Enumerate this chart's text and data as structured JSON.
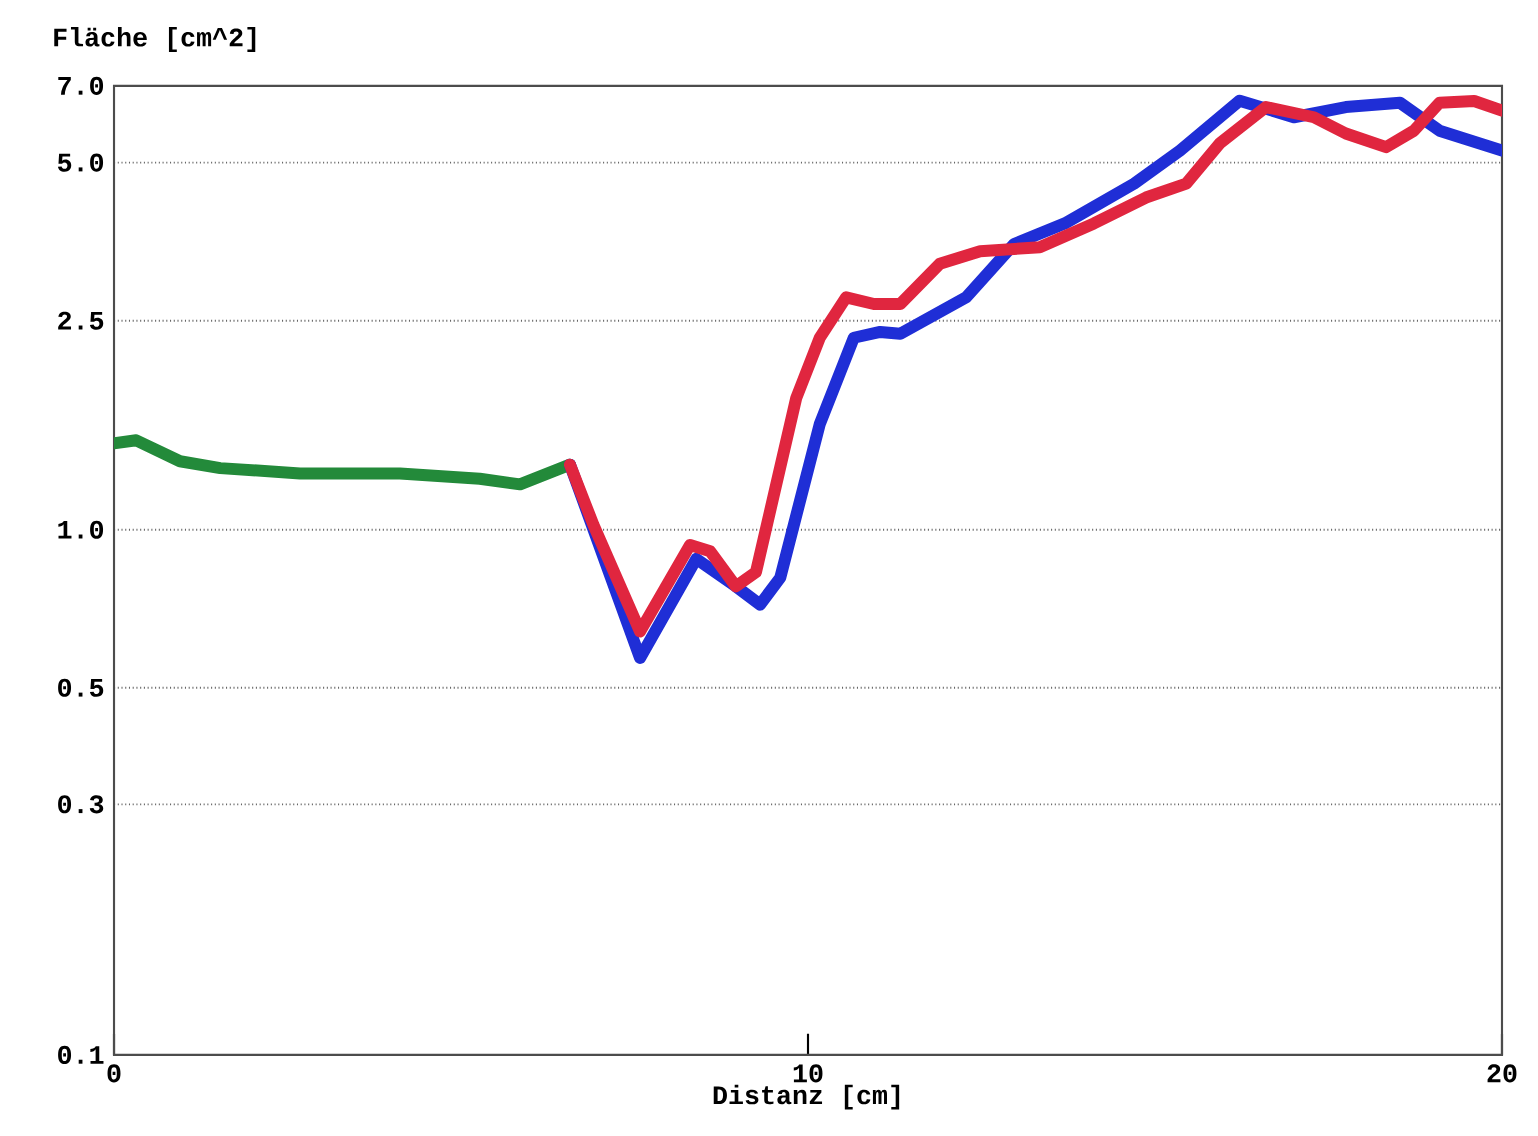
{
  "chart_data": {
    "type": "line",
    "xlabel": "Distanz  [cm]",
    "ylabel": "Fläche  [cm^2]",
    "xlim": [
      0,
      20
    ],
    "xticks": [
      0,
      10,
      20
    ],
    "ylim": [
      0.1,
      7.0
    ],
    "yticks": [
      {
        "value": 0.1,
        "label": "0.1"
      },
      {
        "value": 0.3,
        "label": "0.3"
      },
      {
        "value": 0.5,
        "label": "0.5"
      },
      {
        "value": 1.0,
        "label": "1.0"
      },
      {
        "value": 2.5,
        "label": "2.5"
      },
      {
        "value": 5.0,
        "label": "5.0"
      },
      {
        "value": 7.0,
        "label": "7.0"
      }
    ],
    "log": "y",
    "grid": "y",
    "legend": false,
    "marker": "none",
    "line_style": "solid",
    "series": [
      {
        "color": "#238a3a",
        "x": [
          0,
          0.32,
          0.95,
          1.53,
          2.68,
          4.12,
          5.27,
          5.85,
          6.57
        ],
        "values": [
          1.46,
          1.48,
          1.35,
          1.31,
          1.28,
          1.28,
          1.25,
          1.22,
          1.33
        ]
      },
      {
        "color": "#1f2ed6",
        "x": [
          6.57,
          6.91,
          7.58,
          8.39,
          8.96,
          9.31,
          9.6,
          10.17,
          10.66,
          11.04,
          11.33,
          12.28,
          12.97,
          13.7,
          14.7,
          15.36,
          16.22,
          17.0,
          17.75,
          18.53,
          19.1,
          20.0
        ],
        "values": [
          1.33,
          1.0,
          0.57,
          0.88,
          0.78,
          0.72,
          0.81,
          1.59,
          2.32,
          2.38,
          2.36,
          2.77,
          3.5,
          3.83,
          4.56,
          5.27,
          6.56,
          6.1,
          6.38,
          6.5,
          5.75,
          5.27
        ]
      },
      {
        "color": "#e0263f",
        "x": [
          6.57,
          6.91,
          7.58,
          8.3,
          8.59,
          8.96,
          9.25,
          9.83,
          10.17,
          10.55,
          10.95,
          11.33,
          11.9,
          12.48,
          13.34,
          14.12,
          14.87,
          15.45,
          15.94,
          16.6,
          17.29,
          17.75,
          18.33,
          18.73,
          19.1,
          19.6,
          20.0
        ],
        "values": [
          1.33,
          1.02,
          0.64,
          0.935,
          0.91,
          0.78,
          0.83,
          1.78,
          2.32,
          2.77,
          2.69,
          2.69,
          3.21,
          3.39,
          3.45,
          3.83,
          4.29,
          4.56,
          5.45,
          6.38,
          6.1,
          5.68,
          5.35,
          5.75,
          6.5,
          6.55,
          6.28
        ]
      }
    ]
  }
}
